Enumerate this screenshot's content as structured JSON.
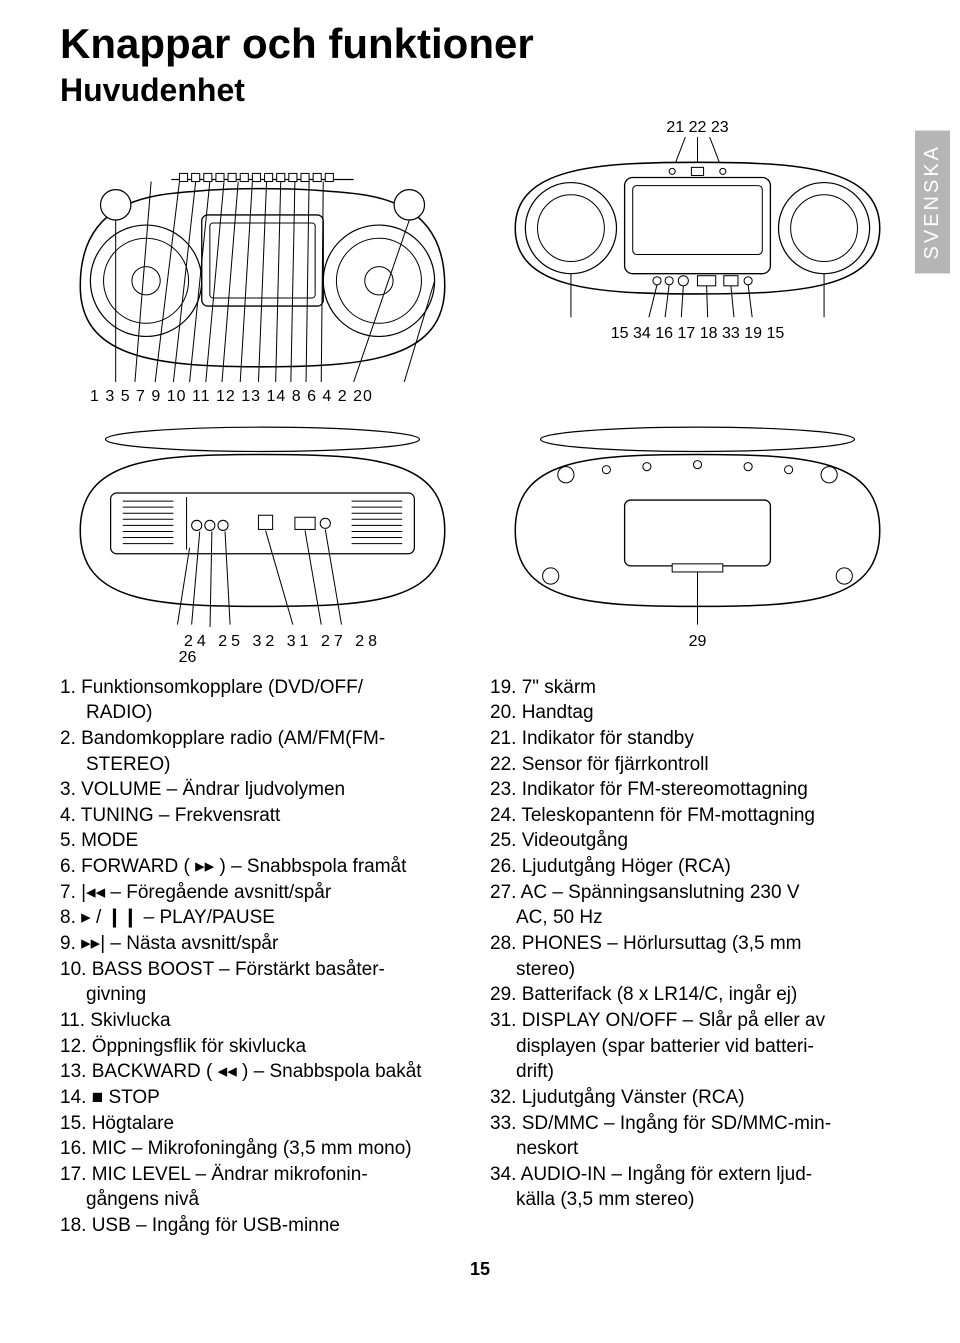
{
  "title": "Knappar och funktioner",
  "subtitle": "Huvudenhet",
  "side_tab": "SVENSKA",
  "page_number": "15",
  "callouts": {
    "top_above": "21  22  23",
    "top_below": "15     34 16 17   18 33 19     15",
    "front_below": "1   3  5  7  9 10 11  12 13 14  8  6  4   2     20",
    "back_below_line1": "24 25   32        31  27  28",
    "back_below_line2": "26",
    "bottom_below": "29"
  },
  "left_items": [
    {
      "n": "1.",
      "t": "Funktionsomkopplare (DVD/OFF/",
      "cont": "RADIO)"
    },
    {
      "n": "2.",
      "t": "Bandomkopplare radio (AM/FM(FM-",
      "cont": "STEREO)"
    },
    {
      "n": "3.",
      "t": "VOLUME – Ändrar ljudvolymen"
    },
    {
      "n": "4.",
      "t": "TUNING – Frekvensratt"
    },
    {
      "n": "5.",
      "t": "MODE"
    },
    {
      "n": "6.",
      "t": "FORWARD ( ▸▸ ) – Snabbspola framåt"
    },
    {
      "n": "7.",
      "t": "|◂◂ – Föregående avsnitt/spår"
    },
    {
      "n": "8.",
      "t": "▸ / ❙❙ – PLAY/PAUSE"
    },
    {
      "n": "9.",
      "t": "▸▸| – Nästa avsnitt/spår"
    },
    {
      "n": "10.",
      "t": "BASS BOOST – Förstärkt basåter-",
      "cont": "givning"
    },
    {
      "n": "11.",
      "t": "Skivlucka"
    },
    {
      "n": "12.",
      "t": "Öppningsflik för skivlucka"
    },
    {
      "n": "13.",
      "t": "BACKWARD ( ◂◂ ) – Snabbspola bakåt"
    },
    {
      "n": "14.",
      "t": "■ STOP"
    },
    {
      "n": "15.",
      "t": "Högtalare"
    },
    {
      "n": "16.",
      "t": "MIC – Mikrofoningång (3,5 mm mono)"
    },
    {
      "n": "17.",
      "t": "MIC LEVEL – Ändrar mikrofonin-",
      "cont": "gångens nivå"
    },
    {
      "n": "18.",
      "t": "USB – Ingång för USB-minne"
    }
  ],
  "right_items": [
    {
      "n": "19.",
      "t": "7\" skärm"
    },
    {
      "n": "20.",
      "t": "Handtag"
    },
    {
      "n": "21.",
      "t": "Indikator för standby"
    },
    {
      "n": "22.",
      "t": "Sensor för fjärrkontroll"
    },
    {
      "n": "23.",
      "t": "Indikator för FM-stereomottagning"
    },
    {
      "n": "24.",
      "t": "Teleskopantenn för FM-mottagning"
    },
    {
      "n": "25.",
      "t": "Videoutgång"
    },
    {
      "n": "26.",
      "t": "Ljudutgång Höger (RCA)"
    },
    {
      "n": "27.",
      "t": "AC – Spänningsanslutning 230 V",
      "cont": "AC, 50 Hz"
    },
    {
      "n": "28.",
      "t": "PHONES – Hörlursuttag (3,5 mm",
      "cont": "stereo)"
    },
    {
      "n": "29.",
      "t": "Batterifack (8 x LR14/C, ingår ej)"
    },
    {
      "n": "31.",
      "t": "DISPLAY ON/OFF – Slår på eller av",
      "cont": "displayen (spar batterier vid batteri-",
      "cont2": "drift)"
    },
    {
      "n": "32.",
      "t": "Ljudutgång Vänster (RCA)"
    },
    {
      "n": "33.",
      "t": "SD/MMC – Ingång för SD/MMC-min-",
      "cont": "neskort"
    },
    {
      "n": "34.",
      "t": "AUDIO-IN – Ingång för extern ljud-",
      "cont": "källa (3,5 mm stereo)"
    }
  ]
}
